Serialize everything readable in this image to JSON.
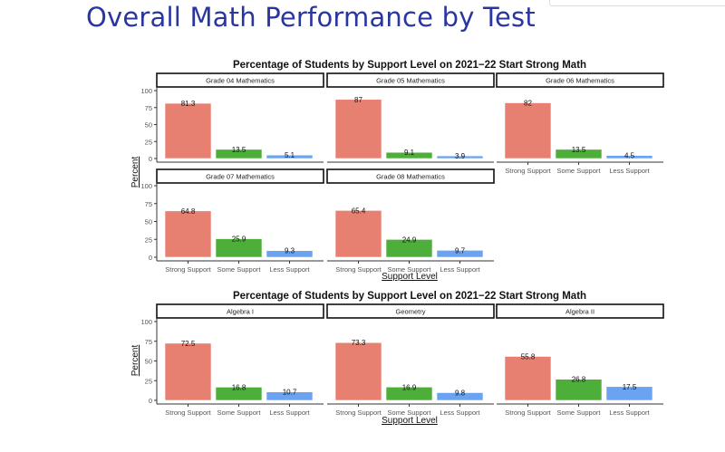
{
  "slide": {
    "title": "Overall Math Performance by Test"
  },
  "colors": {
    "Strong Support": "#e88072",
    "Some Support": "#4daf3a",
    "Less Support": "#6aa3f0",
    "title": "#2a36a0"
  },
  "chart_data": [
    {
      "type": "bar",
      "title": "Percentage of Students by Support Level on 2021−22 Start Strong Math",
      "xlabel": "Support Level",
      "ylabel": "Percent",
      "ylim": [
        0,
        100
      ],
      "yticks": [
        "0",
        "25",
        "50",
        "75",
        "100"
      ],
      "categories": [
        "Strong Support",
        "Some Support",
        "Less Support"
      ],
      "facets": [
        {
          "name": "Grade 04 Mathematics",
          "values": [
            81.3,
            13.5,
            5.1
          ],
          "labels": [
            "81.3",
            "13.5",
            "5.1"
          ]
        },
        {
          "name": "Grade 05 Mathematics",
          "values": [
            87,
            9.1,
            3.9
          ],
          "labels": [
            "87",
            "9.1",
            "3.9"
          ]
        },
        {
          "name": "Grade 06 Mathematics",
          "values": [
            82,
            13.5,
            4.5
          ],
          "labels": [
            "82",
            "13.5",
            "4.5"
          ]
        },
        {
          "name": "Grade 07 Mathematics",
          "values": [
            64.8,
            25.9,
            9.3
          ],
          "labels": [
            "64.8",
            "25.9",
            "9.3"
          ]
        },
        {
          "name": "Grade 08 Mathematics",
          "values": [
            65.4,
            24.9,
            9.7
          ],
          "labels": [
            "65.4",
            "24.9",
            "9.7"
          ]
        }
      ]
    },
    {
      "type": "bar",
      "title": "Percentage of Students by Support Level on 2021−22 Start Strong Math",
      "xlabel": "Support Level",
      "ylabel": "Percent",
      "ylim": [
        0,
        100
      ],
      "yticks": [
        "0",
        "25",
        "50",
        "75",
        "100"
      ],
      "categories": [
        "Strong Support",
        "Some Support",
        "Less Support"
      ],
      "facets": [
        {
          "name": "Algebra I",
          "values": [
            72.5,
            16.8,
            10.7
          ],
          "labels": [
            "72.5",
            "16.8",
            "10.7"
          ]
        },
        {
          "name": "Geometry",
          "values": [
            73.3,
            16.9,
            9.8
          ],
          "labels": [
            "73.3",
            "16.9",
            "9.8"
          ]
        },
        {
          "name": "Algebra II",
          "values": [
            55.8,
            26.8,
            17.5
          ],
          "labels": [
            "55.8",
            "26.8",
            "17.5"
          ]
        }
      ]
    }
  ]
}
